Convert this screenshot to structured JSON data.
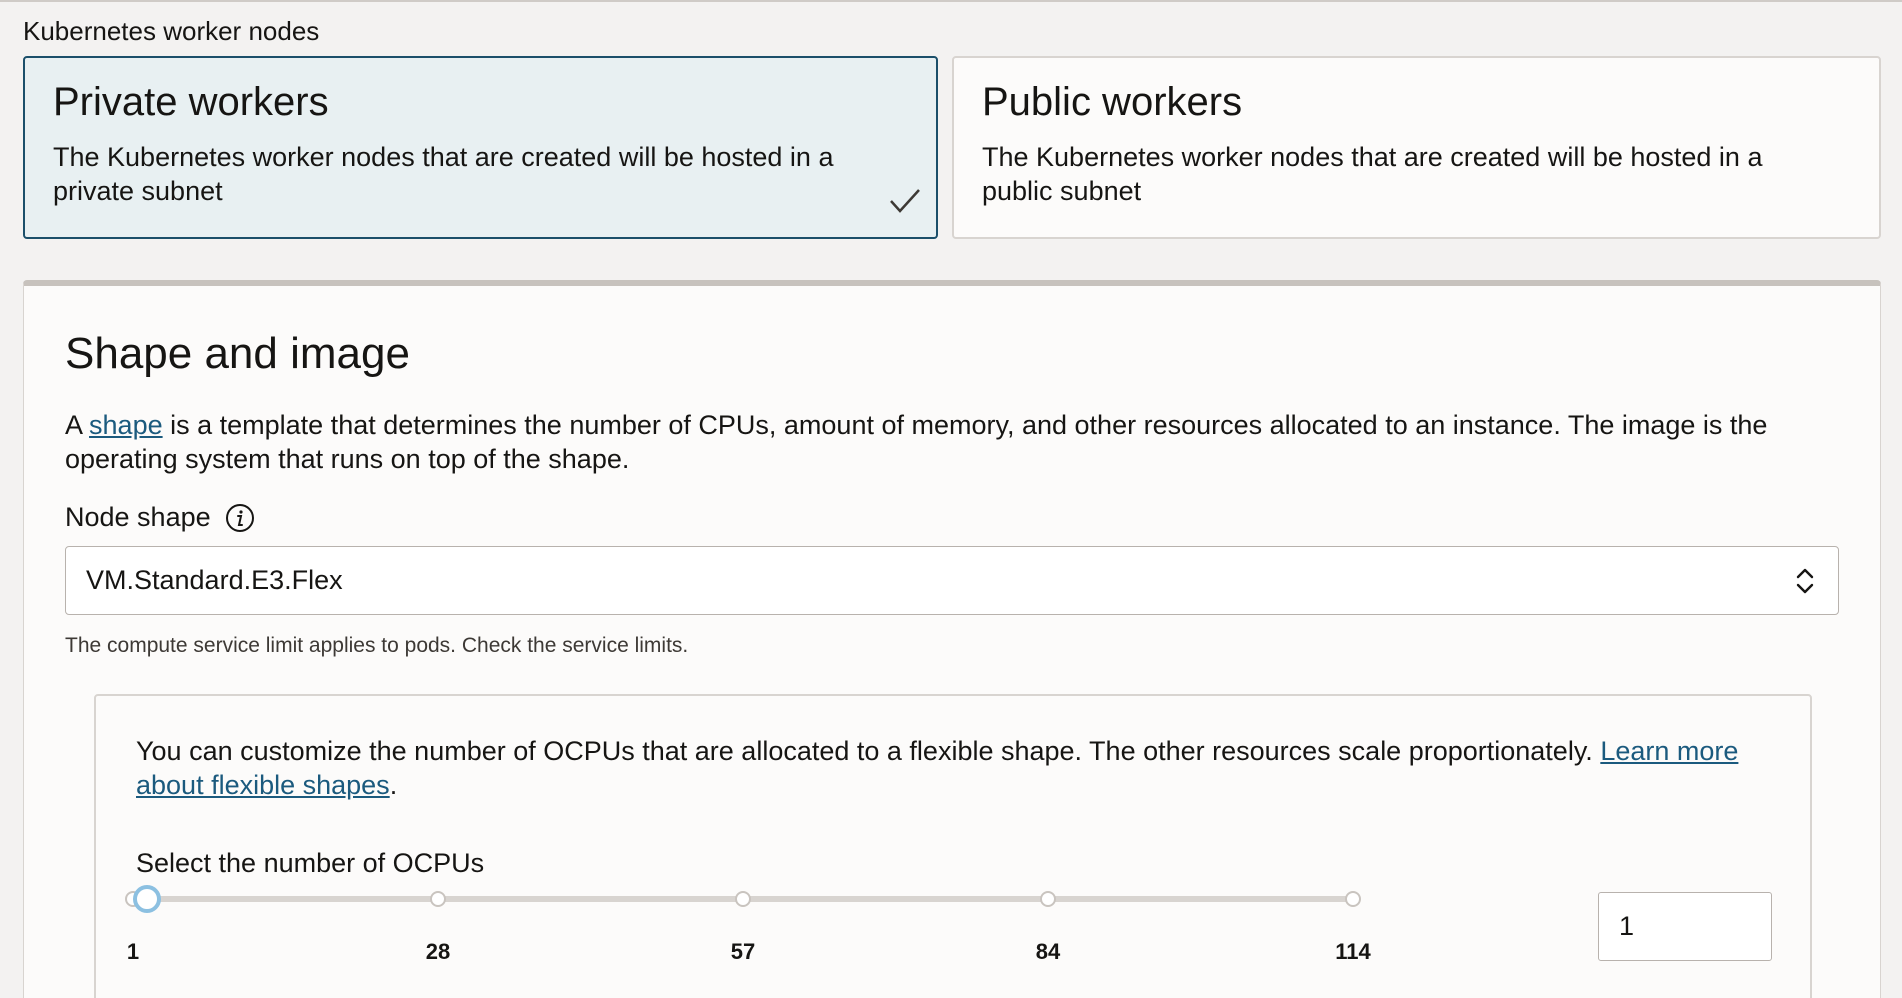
{
  "worker_nodes": {
    "section_label": "Kubernetes worker nodes",
    "options": [
      {
        "title": "Private workers",
        "description": "The Kubernetes worker nodes that are created will be hosted in a private subnet",
        "selected": true
      },
      {
        "title": "Public workers",
        "description": "The Kubernetes worker nodes that are created will be hosted in a public subnet",
        "selected": false
      }
    ]
  },
  "shape_image": {
    "title": "Shape and image",
    "desc_prefix": "A ",
    "desc_link": "shape",
    "desc_suffix": " is a template that determines the number of CPUs, amount of memory, and other resources allocated to an instance. The image is the operating system that runs on top of the shape.",
    "node_shape_label": "Node shape",
    "node_shape_value": "VM.Standard.E3.Flex",
    "help_text": "The compute service limit applies to pods. Check the service limits.",
    "flex": {
      "desc_text": "You can customize the number of OCPUs that are allocated to a flexible shape. The other resources scale proportionately. ",
      "desc_link": "Learn more about flexible shapes",
      "desc_end": ".",
      "slider_label": "Select the number of OCPUs",
      "ticks": [
        "1",
        "28",
        "57",
        "84",
        "114"
      ],
      "min": 1,
      "max": 114,
      "value": 1,
      "input_value": "1"
    }
  },
  "colors": {
    "selected_border": "#1b4f6a",
    "selected_bg": "#e8f0f2",
    "link": "#1b5a7e",
    "slider_handle": "#8cc0e1"
  }
}
